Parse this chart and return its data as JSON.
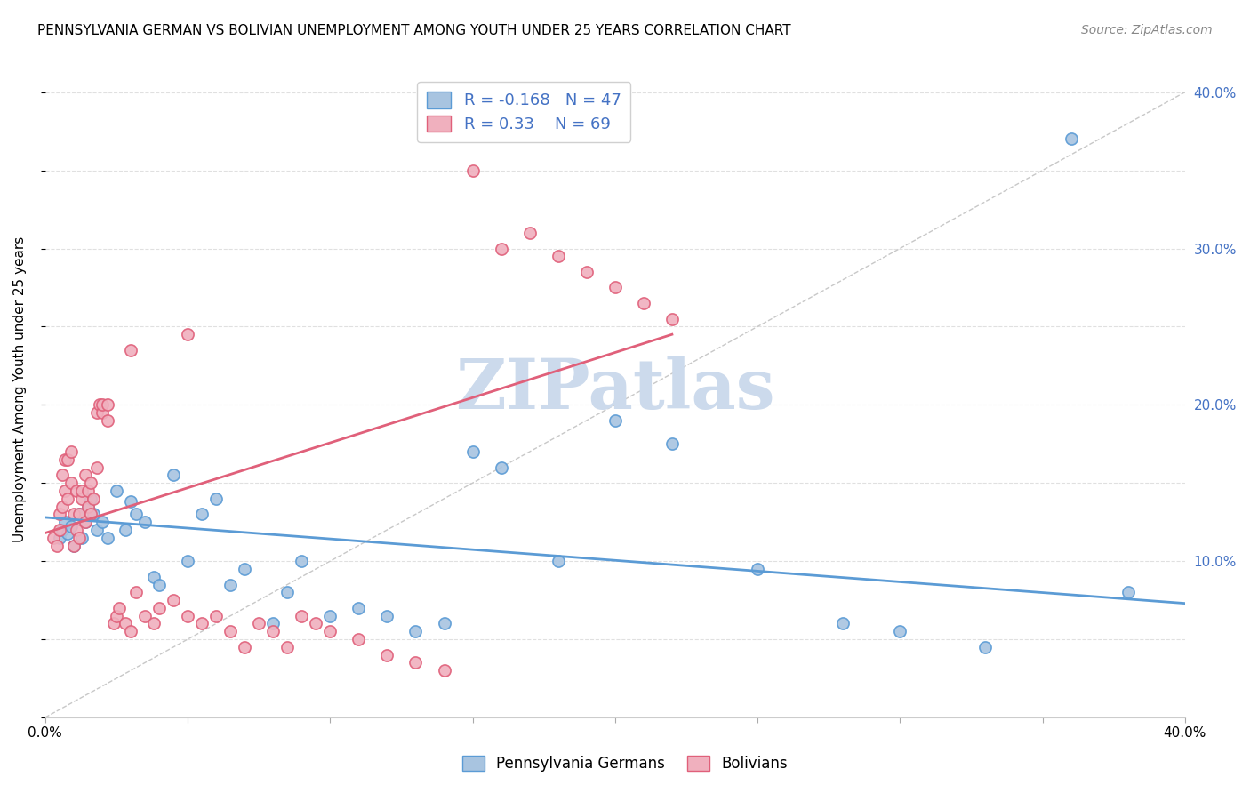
{
  "title": "PENNSYLVANIA GERMAN VS BOLIVIAN UNEMPLOYMENT AMONG YOUTH UNDER 25 YEARS CORRELATION CHART",
  "source": "Source: ZipAtlas.com",
  "ylabel": "Unemployment Among Youth under 25 years",
  "xlim": [
    0.0,
    0.4
  ],
  "ylim": [
    0.0,
    0.42
  ],
  "x_ticks": [
    0.0,
    0.05,
    0.1,
    0.15,
    0.2,
    0.25,
    0.3,
    0.35,
    0.4
  ],
  "y_ticks": [
    0.0,
    0.05,
    0.1,
    0.15,
    0.2,
    0.25,
    0.3,
    0.35,
    0.4
  ],
  "right_tick_labels": [
    "",
    "",
    "10.0%",
    "",
    "20.0%",
    "",
    "30.0%",
    "",
    "40.0%"
  ],
  "blue_color": "#a8c4e0",
  "pink_color": "#f0b0be",
  "blue_edge_color": "#5b9bd5",
  "pink_edge_color": "#e0607a",
  "blue_line_color": "#5b9bd5",
  "pink_line_color": "#e0607a",
  "dashed_line_color": "#c8c8c8",
  "legend_text_color": "#4472c4",
  "watermark_color": "#ccdaec",
  "grid_color": "#e0e0e0",
  "R_blue": -0.168,
  "N_blue": 47,
  "R_pink": 0.33,
  "N_pink": 69,
  "blue_scatter_x": [
    0.005,
    0.006,
    0.007,
    0.008,
    0.009,
    0.01,
    0.012,
    0.013,
    0.014,
    0.015,
    0.016,
    0.017,
    0.018,
    0.02,
    0.022,
    0.025,
    0.028,
    0.03,
    0.032,
    0.035,
    0.038,
    0.04,
    0.045,
    0.05,
    0.055,
    0.06,
    0.065,
    0.07,
    0.08,
    0.085,
    0.09,
    0.1,
    0.11,
    0.12,
    0.13,
    0.14,
    0.15,
    0.16,
    0.18,
    0.2,
    0.22,
    0.25,
    0.28,
    0.3,
    0.33,
    0.36,
    0.38
  ],
  "blue_scatter_y": [
    0.115,
    0.12,
    0.125,
    0.118,
    0.122,
    0.11,
    0.13,
    0.115,
    0.125,
    0.135,
    0.14,
    0.13,
    0.12,
    0.125,
    0.115,
    0.145,
    0.12,
    0.138,
    0.13,
    0.125,
    0.09,
    0.085,
    0.155,
    0.1,
    0.13,
    0.14,
    0.085,
    0.095,
    0.06,
    0.08,
    0.1,
    0.065,
    0.07,
    0.065,
    0.055,
    0.06,
    0.17,
    0.16,
    0.1,
    0.19,
    0.175,
    0.095,
    0.06,
    0.055,
    0.045,
    0.37,
    0.08
  ],
  "pink_scatter_x": [
    0.003,
    0.004,
    0.005,
    0.005,
    0.006,
    0.006,
    0.007,
    0.007,
    0.008,
    0.008,
    0.009,
    0.009,
    0.01,
    0.01,
    0.011,
    0.011,
    0.012,
    0.012,
    0.013,
    0.013,
    0.014,
    0.014,
    0.015,
    0.015,
    0.016,
    0.016,
    0.017,
    0.018,
    0.018,
    0.019,
    0.02,
    0.02,
    0.022,
    0.022,
    0.024,
    0.025,
    0.026,
    0.028,
    0.03,
    0.032,
    0.035,
    0.038,
    0.04,
    0.045,
    0.05,
    0.055,
    0.06,
    0.065,
    0.07,
    0.075,
    0.08,
    0.085,
    0.09,
    0.095,
    0.1,
    0.11,
    0.12,
    0.13,
    0.14,
    0.15,
    0.16,
    0.17,
    0.18,
    0.19,
    0.2,
    0.21,
    0.22,
    0.05,
    0.03
  ],
  "pink_scatter_y": [
    0.115,
    0.11,
    0.12,
    0.13,
    0.135,
    0.155,
    0.145,
    0.165,
    0.14,
    0.165,
    0.15,
    0.17,
    0.11,
    0.13,
    0.12,
    0.145,
    0.115,
    0.13,
    0.14,
    0.145,
    0.125,
    0.155,
    0.145,
    0.135,
    0.13,
    0.15,
    0.14,
    0.16,
    0.195,
    0.2,
    0.195,
    0.2,
    0.19,
    0.2,
    0.06,
    0.065,
    0.07,
    0.06,
    0.055,
    0.08,
    0.065,
    0.06,
    0.07,
    0.075,
    0.065,
    0.06,
    0.065,
    0.055,
    0.045,
    0.06,
    0.055,
    0.045,
    0.065,
    0.06,
    0.055,
    0.05,
    0.04,
    0.035,
    0.03,
    0.35,
    0.3,
    0.31,
    0.295,
    0.285,
    0.275,
    0.265,
    0.255,
    0.245,
    0.235
  ],
  "blue_line_x": [
    0.0,
    0.4
  ],
  "blue_line_y": [
    0.128,
    0.073
  ],
  "pink_line_x": [
    0.0,
    0.22
  ],
  "pink_line_y": [
    0.118,
    0.245
  ],
  "diag_line_x": [
    0.0,
    0.4
  ],
  "diag_line_y": [
    0.0,
    0.4
  ]
}
